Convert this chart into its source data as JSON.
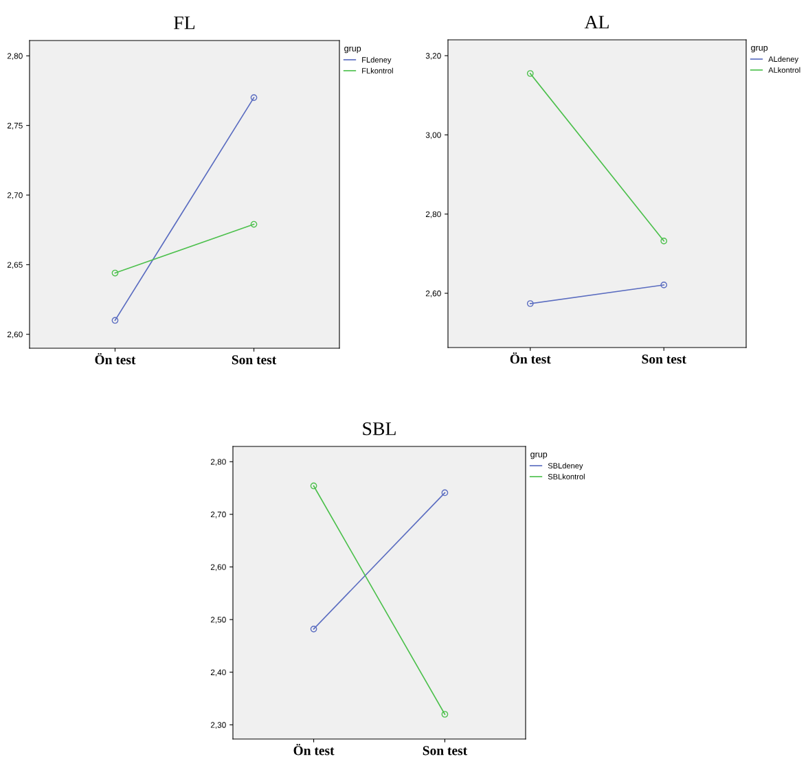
{
  "chart_data": [
    {
      "type": "line",
      "title": "FL",
      "categories": [
        "Ön test",
        "Son test"
      ],
      "legend_title": "grup",
      "legend": "top right",
      "marker": "circle",
      "line_style": "solid",
      "grid": false,
      "ylim": [
        2.59,
        2.811
      ],
      "yticks": [
        {
          "value": 2.6,
          "label": "2,60"
        },
        {
          "value": 2.65,
          "label": "2,65"
        },
        {
          "value": 2.7,
          "label": "2,70"
        },
        {
          "value": 2.75,
          "label": "2,75"
        },
        {
          "value": 2.8,
          "label": "2,80"
        }
      ],
      "series": [
        {
          "name": "FLdeney",
          "color": "#5a6cc0",
          "values": [
            2.61,
            2.77
          ]
        },
        {
          "name": "FLkontrol",
          "color": "#4cc04c",
          "values": [
            2.644,
            2.679
          ]
        }
      ]
    },
    {
      "type": "line",
      "title": "AL",
      "categories": [
        "Ön test",
        "Son test"
      ],
      "legend_title": "grup",
      "legend": "top right",
      "marker": "circle",
      "line_style": "solid",
      "grid": false,
      "ylim": [
        2.463,
        3.24
      ],
      "yticks": [
        {
          "value": 2.6,
          "label": "2,60"
        },
        {
          "value": 2.8,
          "label": "2,80"
        },
        {
          "value": 3.0,
          "label": "3,00"
        },
        {
          "value": 3.2,
          "label": "3,20"
        }
      ],
      "series": [
        {
          "name": "ALdeney",
          "color": "#5a6cc0",
          "values": [
            2.574,
            2.621
          ]
        },
        {
          "name": "ALkontrol",
          "color": "#4cc04c",
          "values": [
            3.155,
            2.732
          ]
        }
      ]
    },
    {
      "type": "line",
      "title": "SBL",
      "categories": [
        "Ön test",
        "Son test"
      ],
      "legend_title": "grup",
      "legend": "top right",
      "marker": "circle",
      "line_style": "solid",
      "grid": false,
      "ylim": [
        2.273,
        2.829
      ],
      "yticks": [
        {
          "value": 2.3,
          "label": "2,30"
        },
        {
          "value": 2.4,
          "label": "2,40"
        },
        {
          "value": 2.5,
          "label": "2,50"
        },
        {
          "value": 2.6,
          "label": "2,60"
        },
        {
          "value": 2.7,
          "label": "2,70"
        },
        {
          "value": 2.8,
          "label": "2,80"
        }
      ],
      "series": [
        {
          "name": "SBLdeney",
          "color": "#5a6cc0",
          "values": [
            2.482,
            2.741
          ]
        },
        {
          "name": "SBLkontrol",
          "color": "#4cc04c",
          "values": [
            2.754,
            2.32
          ]
        }
      ]
    }
  ]
}
